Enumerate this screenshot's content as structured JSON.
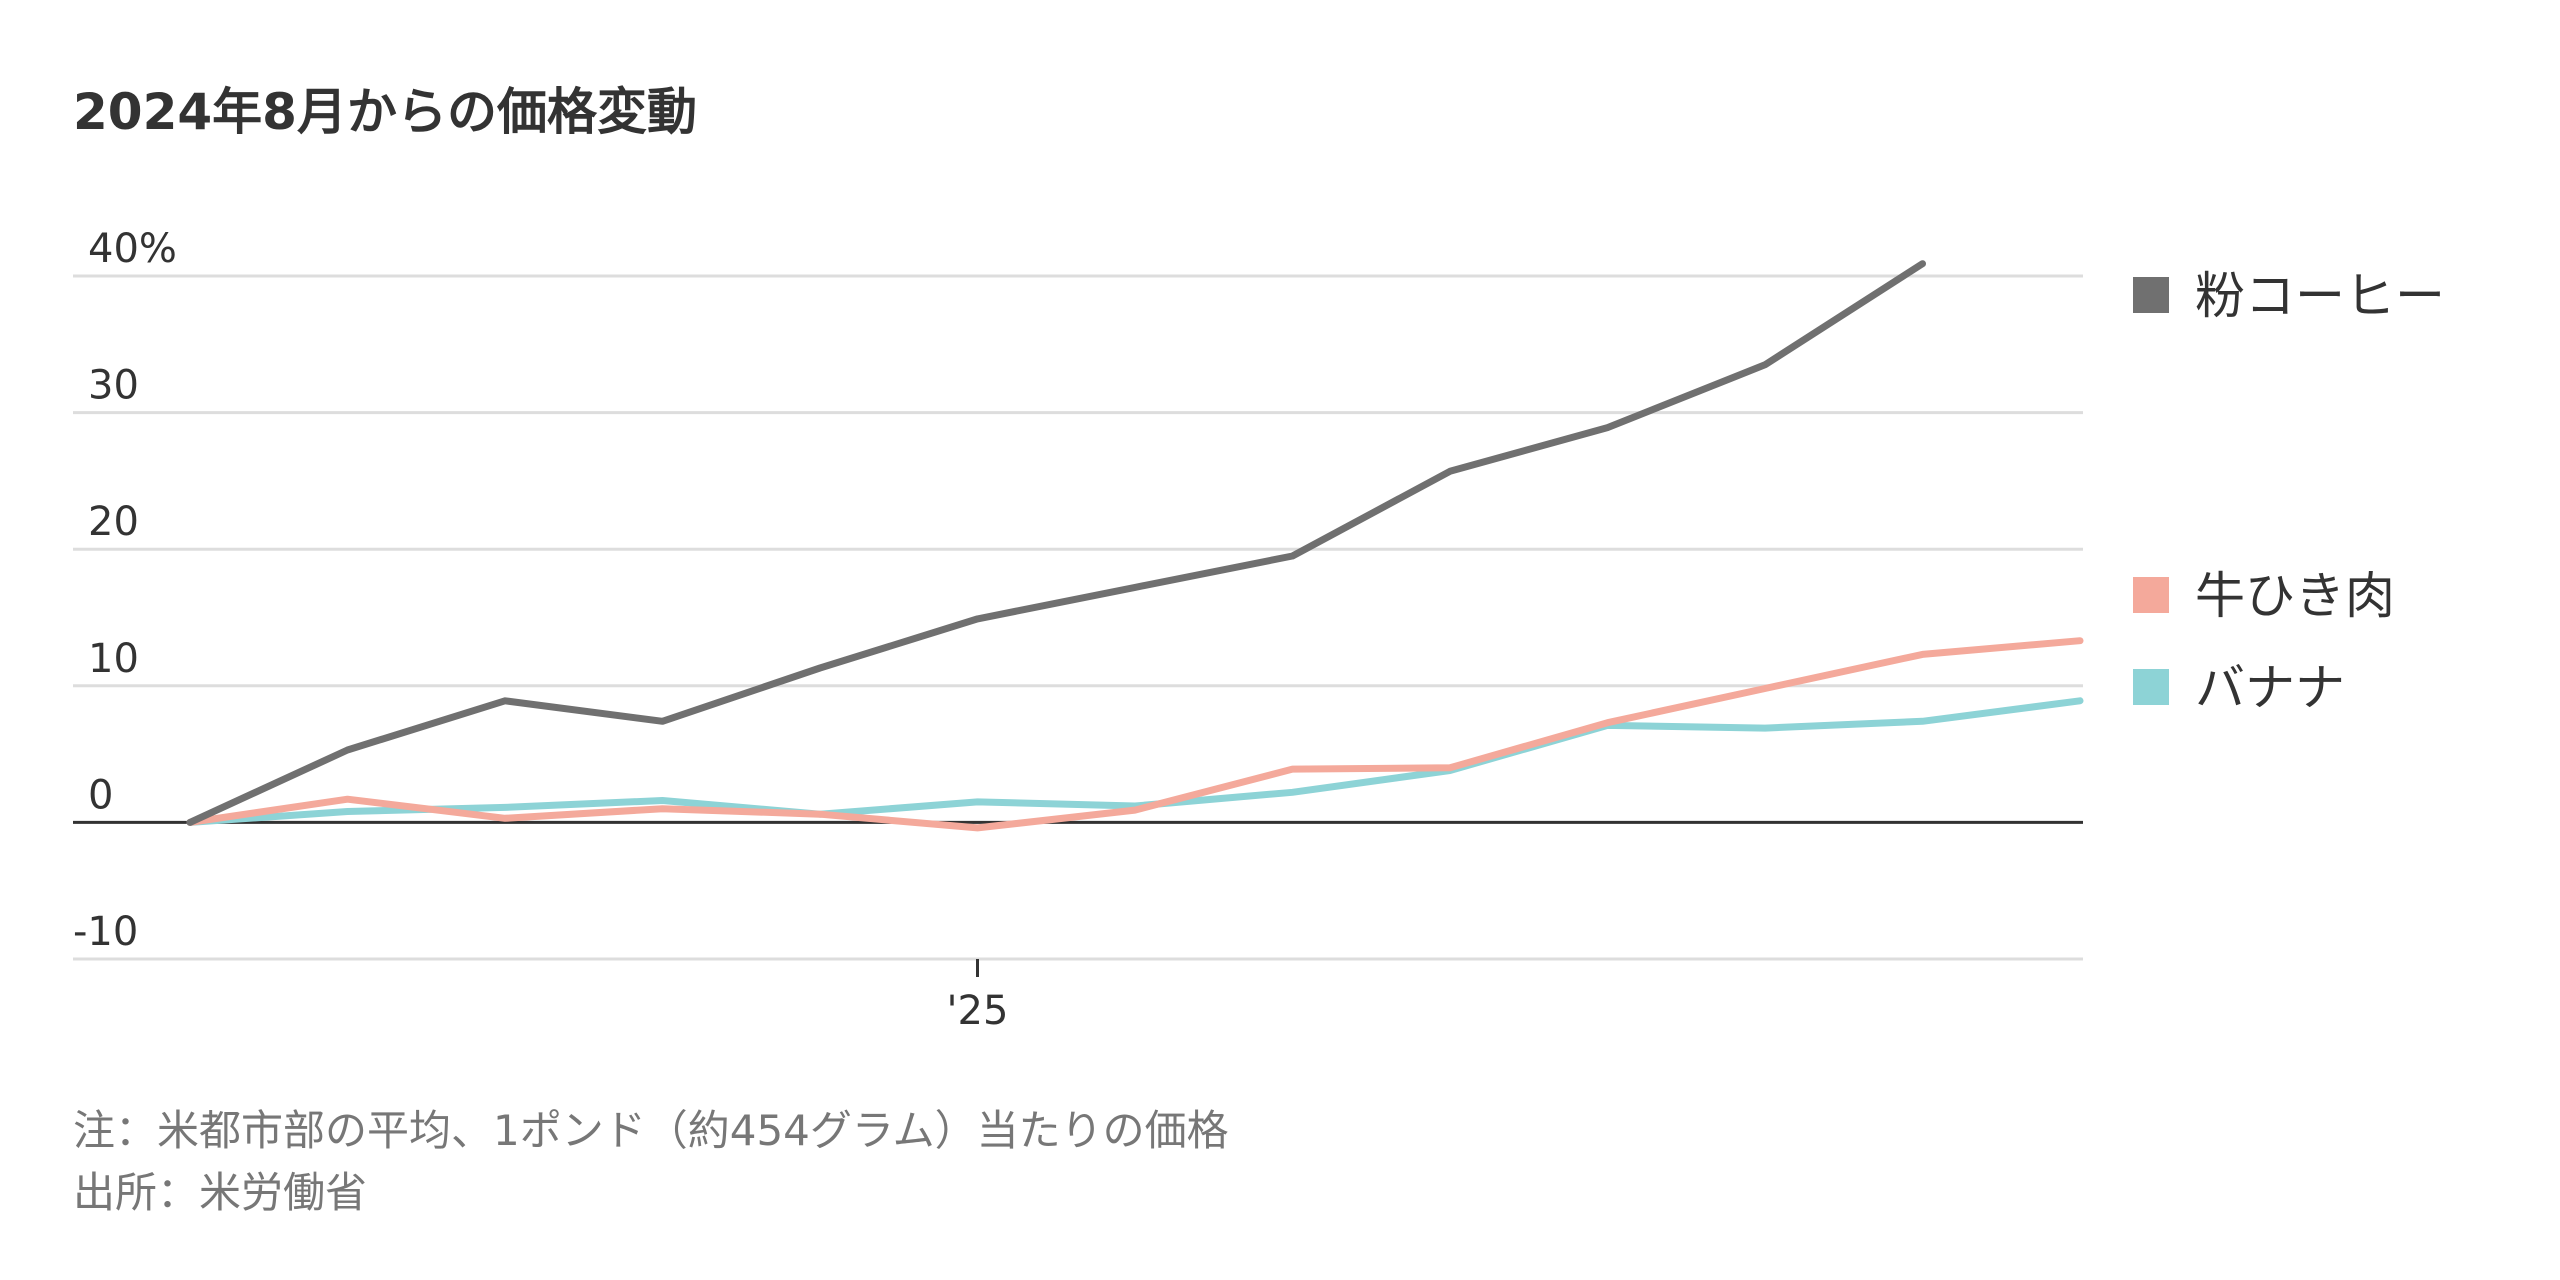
{
  "chart_data": {
    "type": "line",
    "title": "2024年8月からの価格変動",
    "x": [
      "2024-08",
      "2024-09",
      "2024-10",
      "2024-11",
      "2024-12",
      "2025-01",
      "2025-02",
      "2025-03",
      "2025-04",
      "2025-05",
      "2025-06",
      "2025-07",
      "2025-08"
    ],
    "x_ticks": [
      {
        "x": "2025-01",
        "label": "'25"
      }
    ],
    "y_ticks": [
      {
        "value": 40,
        "label": "40%"
      },
      {
        "value": 30,
        "label": "30"
      },
      {
        "value": 20,
        "label": "20"
      },
      {
        "value": 10,
        "label": "10"
      },
      {
        "value": 0,
        "label": "0"
      },
      {
        "value": -10,
        "label": "-10"
      }
    ],
    "ylim": [
      -10,
      40
    ],
    "grid": true,
    "legend_position": "right",
    "series": [
      {
        "name": "粉コーヒー",
        "color": "#707070",
        "values": [
          0,
          5.3,
          8.9,
          7.4,
          11.3,
          14.9,
          17.2,
          19.5,
          25.7,
          28.9,
          33.5,
          40.9,
          null
        ]
      },
      {
        "name": "牛ひき肉",
        "color": "#f4a99b",
        "values": [
          0,
          1.7,
          0.3,
          1.0,
          0.6,
          -0.4,
          0.9,
          3.9,
          4.0,
          7.3,
          9.8,
          12.3,
          13.3
        ]
      },
      {
        "name": "バナナ",
        "color": "#8dd3d6",
        "values": [
          0,
          0.8,
          1.1,
          1.6,
          0.6,
          1.5,
          1.2,
          2.2,
          3.8,
          7.1,
          6.9,
          7.4,
          8.9
        ]
      }
    ]
  },
  "notes": {
    "note": "注：米都市部の平均、1ポンド（約454グラム）当たりの価格",
    "source": "出所：米労働省"
  }
}
